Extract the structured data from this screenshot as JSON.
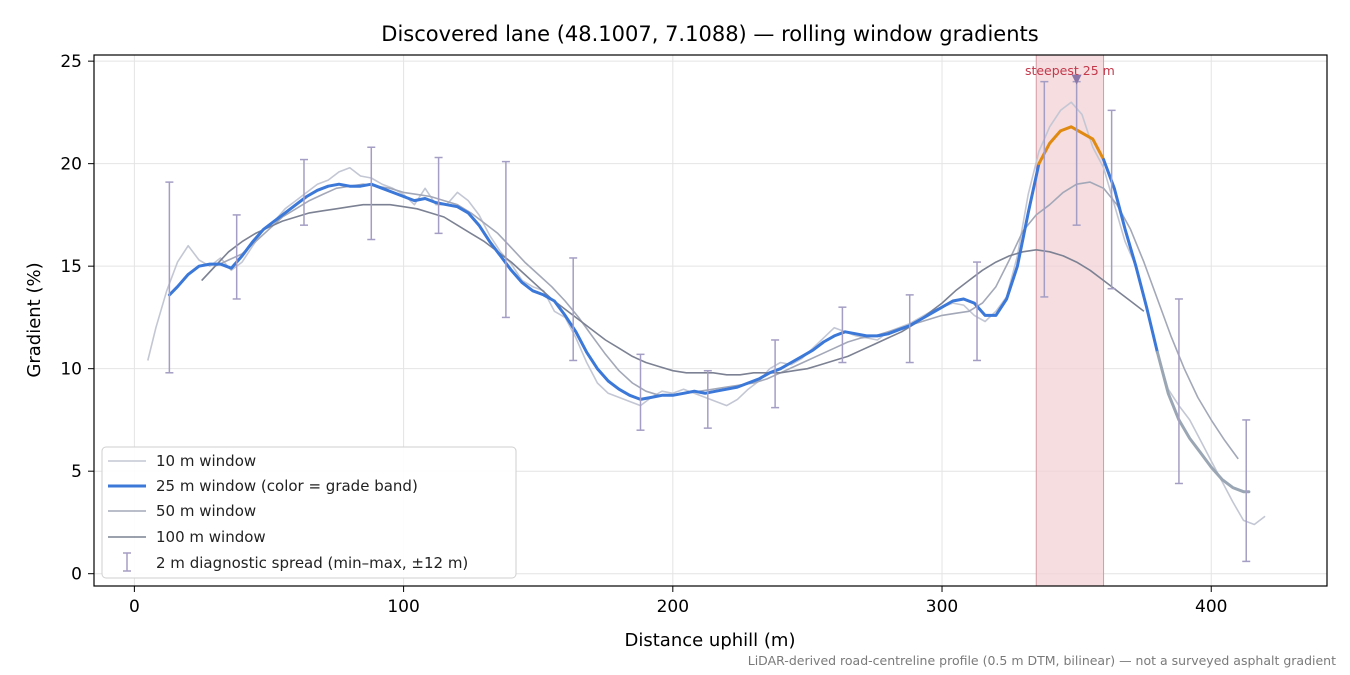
{
  "chart_data": {
    "type": "line",
    "title": "Discovered lane (48.1007, 7.1088) — rolling window gradients",
    "xlabel": "Distance uphill (m)",
    "ylabel": "Gradient (%)",
    "xlim": [
      -15,
      443
    ],
    "ylim": [
      -0.6,
      25.3
    ],
    "xticks": [
      0,
      100,
      200,
      300,
      400
    ],
    "yticks": [
      0,
      5,
      10,
      15,
      20,
      25
    ],
    "grid": true,
    "legend_position": "lower-left",
    "colors": {
      "w10": "#c3c7d4",
      "w25": "#3b78d8",
      "w25_low": "#9aa6b4",
      "w25_steep": "#e08a12",
      "w50": "#a3a8b8",
      "w100": "#7c8293",
      "errbar": "#a59ec4",
      "highlight": "#f2d2d6",
      "highlight_edge": "#d79aa2",
      "marker": "#8a76a8"
    },
    "series": [
      {
        "name": "10 m window",
        "x": [
          5,
          8,
          12,
          16,
          20,
          24,
          28,
          32,
          36,
          40,
          44,
          48,
          52,
          56,
          60,
          64,
          68,
          72,
          76,
          80,
          84,
          88,
          92,
          96,
          100,
          104,
          108,
          112,
          116,
          120,
          124,
          128,
          132,
          136,
          140,
          144,
          148,
          152,
          156,
          160,
          164,
          168,
          172,
          176,
          180,
          184,
          188,
          192,
          196,
          200,
          204,
          208,
          212,
          216,
          220,
          224,
          228,
          232,
          236,
          240,
          244,
          248,
          252,
          256,
          260,
          264,
          268,
          272,
          276,
          280,
          284,
          288,
          292,
          296,
          300,
          304,
          308,
          312,
          316,
          320,
          324,
          328,
          332,
          336,
          340,
          344,
          348,
          352,
          356,
          360,
          364,
          368,
          372,
          376,
          380,
          384,
          388,
          392,
          396,
          400,
          404,
          408,
          412,
          416,
          420
        ],
        "y": [
          10.4,
          12.0,
          13.8,
          15.2,
          16.0,
          15.3,
          15.0,
          15.4,
          14.8,
          15.2,
          16.0,
          16.8,
          17.2,
          17.8,
          18.2,
          18.6,
          19.0,
          19.2,
          19.6,
          19.8,
          19.4,
          19.3,
          19.0,
          18.8,
          18.5,
          18.0,
          18.8,
          18.0,
          18.0,
          18.6,
          18.2,
          17.5,
          16.5,
          15.7,
          15.1,
          14.3,
          14.0,
          13.8,
          12.8,
          12.5,
          11.5,
          10.3,
          9.3,
          8.8,
          8.6,
          8.4,
          8.2,
          8.6,
          8.9,
          8.8,
          9.0,
          8.8,
          8.6,
          8.4,
          8.2,
          8.5,
          9.0,
          9.4,
          10.0,
          10.3,
          10.2,
          10.5,
          11.0,
          11.5,
          12.0,
          11.8,
          11.6,
          11.5,
          11.4,
          11.8,
          12.0,
          12.2,
          12.5,
          12.8,
          13.0,
          13.2,
          13.1,
          12.6,
          12.3,
          12.8,
          13.5,
          15.5,
          18.5,
          20.6,
          21.8,
          22.6,
          23.0,
          22.4,
          20.8,
          19.8,
          18.0,
          16.2,
          15.0,
          13.0,
          10.8,
          9.0,
          8.2,
          7.5,
          6.5,
          5.5,
          4.5,
          3.5,
          2.6,
          2.4,
          2.8
        ]
      },
      {
        "name": "25 m window (color = grade band)",
        "x": [
          13,
          16,
          20,
          24,
          28,
          32,
          36,
          40,
          44,
          48,
          52,
          56,
          60,
          64,
          68,
          72,
          76,
          80,
          84,
          88,
          92,
          96,
          100,
          104,
          108,
          112,
          116,
          120,
          124,
          128,
          132,
          136,
          140,
          144,
          148,
          152,
          156,
          160,
          164,
          168,
          172,
          176,
          180,
          184,
          188,
          192,
          196,
          200,
          204,
          208,
          212,
          216,
          220,
          224,
          228,
          232,
          236,
          240,
          244,
          248,
          252,
          256,
          260,
          264,
          268,
          272,
          276,
          280,
          284,
          288,
          292,
          296,
          300,
          304,
          308,
          312,
          316,
          320,
          324,
          328,
          332,
          336,
          340,
          344,
          348,
          352,
          356,
          360,
          364,
          368,
          372,
          376,
          380,
          384,
          388,
          392,
          396,
          400,
          404,
          408,
          412,
          414
        ],
        "y": [
          13.6,
          14.0,
          14.6,
          15.0,
          15.1,
          15.1,
          14.9,
          15.5,
          16.2,
          16.8,
          17.2,
          17.6,
          18.0,
          18.4,
          18.7,
          18.9,
          19.0,
          18.9,
          18.9,
          19.0,
          18.8,
          18.6,
          18.4,
          18.2,
          18.3,
          18.1,
          18.0,
          17.9,
          17.6,
          17.0,
          16.2,
          15.5,
          14.8,
          14.2,
          13.8,
          13.6,
          13.3,
          12.6,
          11.8,
          10.8,
          10.0,
          9.4,
          9.0,
          8.7,
          8.5,
          8.6,
          8.7,
          8.7,
          8.8,
          8.9,
          8.8,
          8.9,
          9.0,
          9.1,
          9.3,
          9.5,
          9.8,
          10.0,
          10.3,
          10.6,
          10.9,
          11.3,
          11.6,
          11.8,
          11.7,
          11.6,
          11.6,
          11.7,
          11.9,
          12.1,
          12.4,
          12.7,
          13.0,
          13.3,
          13.4,
          13.2,
          12.6,
          12.6,
          13.4,
          15.0,
          17.6,
          20.0,
          21.0,
          21.6,
          21.8,
          21.5,
          21.2,
          20.2,
          18.8,
          16.8,
          15.0,
          13.0,
          10.8,
          8.8,
          7.5,
          6.6,
          5.9,
          5.2,
          4.6,
          4.2,
          4.0,
          4.0
        ],
        "band_breaks": {
          "steep_from": 340,
          "steep_to": 360,
          "low_from": 384
        }
      },
      {
        "name": "50 m window",
        "x": [
          25,
          30,
          35,
          40,
          45,
          50,
          55,
          60,
          65,
          70,
          75,
          80,
          85,
          90,
          95,
          100,
          105,
          110,
          115,
          120,
          125,
          130,
          135,
          140,
          145,
          150,
          155,
          160,
          165,
          170,
          175,
          180,
          185,
          190,
          195,
          200,
          205,
          210,
          215,
          220,
          225,
          230,
          235,
          240,
          245,
          250,
          255,
          260,
          265,
          270,
          275,
          280,
          285,
          290,
          295,
          300,
          305,
          310,
          315,
          320,
          325,
          330,
          335,
          340,
          345,
          350,
          355,
          360,
          365,
          370,
          375,
          380,
          385,
          390,
          395,
          400,
          405,
          410
        ],
        "y": [
          14.3,
          15.0,
          15.3,
          15.6,
          16.2,
          16.8,
          17.4,
          17.8,
          18.2,
          18.5,
          18.8,
          18.9,
          19.0,
          18.9,
          18.8,
          18.6,
          18.5,
          18.4,
          18.2,
          18.0,
          17.6,
          17.1,
          16.6,
          15.9,
          15.2,
          14.6,
          14.0,
          13.3,
          12.5,
          11.6,
          10.7,
          9.9,
          9.3,
          8.9,
          8.7,
          8.7,
          8.8,
          8.9,
          9.0,
          9.1,
          9.2,
          9.3,
          9.5,
          9.8,
          10.1,
          10.4,
          10.7,
          11.0,
          11.3,
          11.5,
          11.6,
          11.8,
          12.0,
          12.2,
          12.4,
          12.6,
          12.7,
          12.8,
          13.2,
          14.0,
          15.3,
          16.7,
          17.5,
          18.0,
          18.6,
          19.0,
          19.1,
          18.8,
          18.0,
          16.8,
          15.2,
          13.4,
          11.6,
          10.0,
          8.6,
          7.5,
          6.5,
          5.6
        ]
      },
      {
        "name": "100 m window",
        "x": [
          25,
          30,
          35,
          40,
          45,
          50,
          55,
          60,
          65,
          70,
          75,
          80,
          85,
          90,
          95,
          100,
          105,
          110,
          115,
          120,
          125,
          130,
          135,
          140,
          145,
          150,
          155,
          160,
          165,
          170,
          175,
          180,
          185,
          190,
          195,
          200,
          205,
          210,
          215,
          220,
          225,
          230,
          235,
          240,
          245,
          250,
          255,
          260,
          265,
          270,
          275,
          280,
          285,
          290,
          295,
          300,
          305,
          310,
          315,
          320,
          325,
          330,
          335,
          340,
          345,
          350,
          355,
          360,
          365,
          370,
          375
        ],
        "y": [
          14.3,
          15.0,
          15.7,
          16.2,
          16.6,
          16.9,
          17.2,
          17.4,
          17.6,
          17.7,
          17.8,
          17.9,
          18.0,
          18.0,
          18.0,
          17.9,
          17.8,
          17.6,
          17.4,
          17.0,
          16.6,
          16.2,
          15.7,
          15.2,
          14.6,
          14.0,
          13.4,
          12.9,
          12.4,
          11.9,
          11.4,
          11.0,
          10.6,
          10.3,
          10.1,
          9.9,
          9.8,
          9.8,
          9.8,
          9.7,
          9.7,
          9.8,
          9.8,
          9.8,
          9.9,
          10.0,
          10.2,
          10.4,
          10.6,
          10.9,
          11.2,
          11.5,
          11.8,
          12.2,
          12.7,
          13.2,
          13.8,
          14.3,
          14.8,
          15.2,
          15.5,
          15.7,
          15.8,
          15.7,
          15.5,
          15.2,
          14.8,
          14.3,
          13.8,
          13.3,
          12.8
        ]
      },
      {
        "name": "2 m diagnostic spread (min–max, ±12 m)",
        "x": [
          13,
          38,
          63,
          88,
          113,
          138,
          163,
          188,
          213,
          238,
          263,
          288,
          313,
          338,
          350,
          363,
          388,
          413
        ],
        "low": [
          9.8,
          13.4,
          17.0,
          16.3,
          16.6,
          12.5,
          10.4,
          7.0,
          7.1,
          8.1,
          10.3,
          10.3,
          10.4,
          13.5,
          17.0,
          13.9,
          4.4,
          0.6
        ],
        "high": [
          19.1,
          17.5,
          20.2,
          20.8,
          20.3,
          20.1,
          15.4,
          10.7,
          9.9,
          11.4,
          13.0,
          13.6,
          15.2,
          24.0,
          24.0,
          22.6,
          13.4,
          7.5
        ]
      }
    ],
    "annotations": {
      "steepest_label": "steepest 25 m",
      "steepest_span": [
        335,
        360
      ],
      "steepest_marker_x": 350,
      "footnote": "LiDAR-derived road-centreline profile (0.5 m DTM, bilinear) — not a surveyed asphalt gradient"
    }
  }
}
